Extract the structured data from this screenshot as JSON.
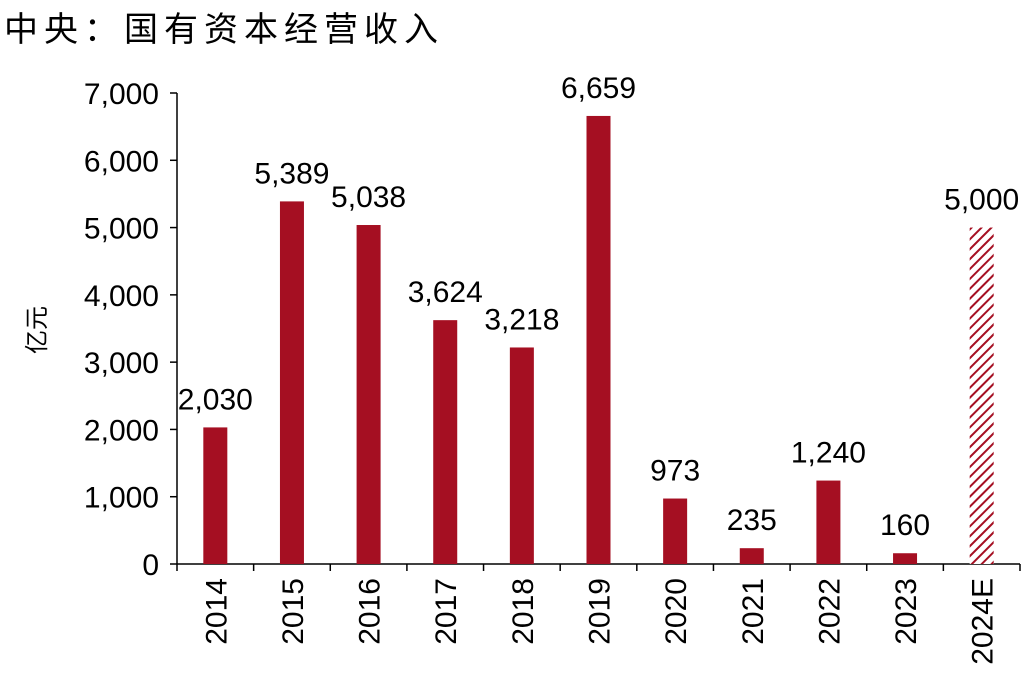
{
  "title": "中央：国有资本经营收入",
  "colors": {
    "bar": "#a50f22",
    "axis": "#000000"
  },
  "chart_data": {
    "type": "bar",
    "title": "中央：国有资本经营收入",
    "ylabel": "亿元",
    "xlabel": "",
    "categories": [
      "2014",
      "2015",
      "2016",
      "2017",
      "2018",
      "2019",
      "2020",
      "2021",
      "2022",
      "2023",
      "2024E"
    ],
    "values": [
      2030,
      5389,
      5038,
      3624,
      3218,
      6659,
      973,
      235,
      1240,
      160,
      5000
    ],
    "value_labels": [
      "2,030",
      "5,389",
      "5,038",
      "3,624",
      "3,218",
      "6,659",
      "973",
      "235",
      "1,240",
      "160",
      "5,000"
    ],
    "estimated": [
      false,
      false,
      false,
      false,
      false,
      false,
      false,
      false,
      false,
      false,
      true
    ],
    "ylim": [
      0,
      7000
    ],
    "yticks": [
      0,
      1000,
      2000,
      3000,
      4000,
      5000,
      6000,
      7000
    ],
    "ytick_labels": [
      "0",
      "1,000",
      "2,000",
      "3,000",
      "4,000",
      "5,000",
      "6,000",
      "7,000"
    ],
    "grid": false,
    "legend": "none"
  }
}
